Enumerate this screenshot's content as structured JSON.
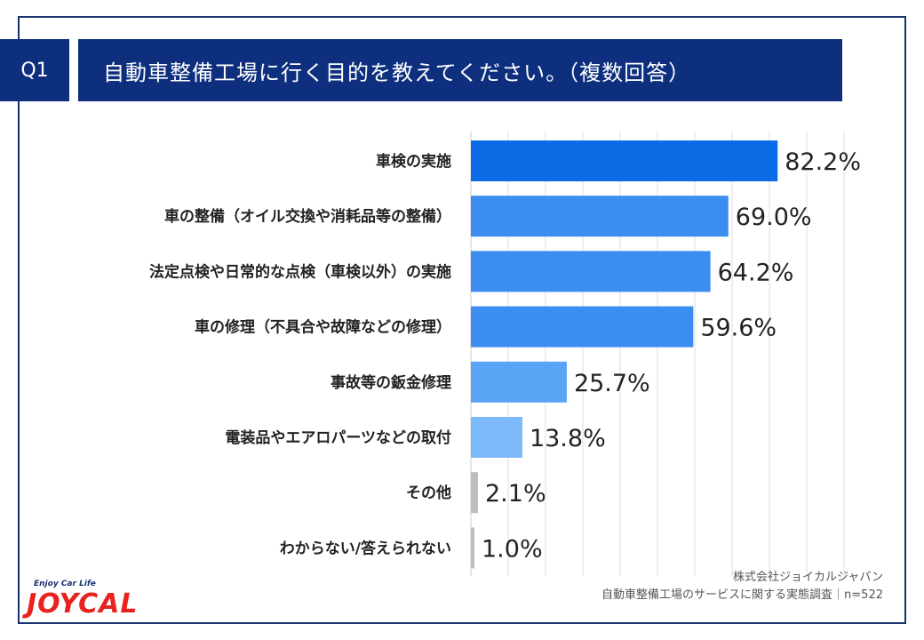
{
  "header": {
    "q_label": "Q1",
    "title": "自動車整備工場に行く目的を教えてください。（複数回答）"
  },
  "chart_data": {
    "type": "bar",
    "orientation": "horizontal",
    "categories": [
      "車検の実施",
      "車の整備（オイル交換や消耗品等の整備）",
      "法定点検や日常的な点検（車検以外）の実施",
      "車の修理（不具合や故障などの修理）",
      "事故等の鈑金修理",
      "電装品やエアロパーツなどの取付",
      "その他",
      "わからない/答えられない"
    ],
    "values": [
      82.2,
      69.0,
      64.2,
      59.6,
      25.7,
      13.8,
      2.1,
      1.0
    ],
    "value_labels": [
      "82.2%",
      "69.0%",
      "64.2%",
      "59.6%",
      "25.7%",
      "13.8%",
      "2.1%",
      "1.0%"
    ],
    "bar_colors": [
      "#0b6ce6",
      "#3b8ef0",
      "#3b8ef0",
      "#3b8ef0",
      "#5aa4f5",
      "#7dbaf9",
      "#bdbdbd",
      "#bdbdbd"
    ],
    "xlim": [
      0,
      100
    ],
    "grid": true,
    "title": "",
    "xlabel": "",
    "ylabel": ""
  },
  "footer": {
    "source_line1": "株式会社ジョイカルジャパン",
    "source_line2": "自動車整備工場のサービスに関する実態調査｜n=522"
  },
  "logo": {
    "tagline": "Enjoy Car Life",
    "brand": "JOYCAL"
  }
}
